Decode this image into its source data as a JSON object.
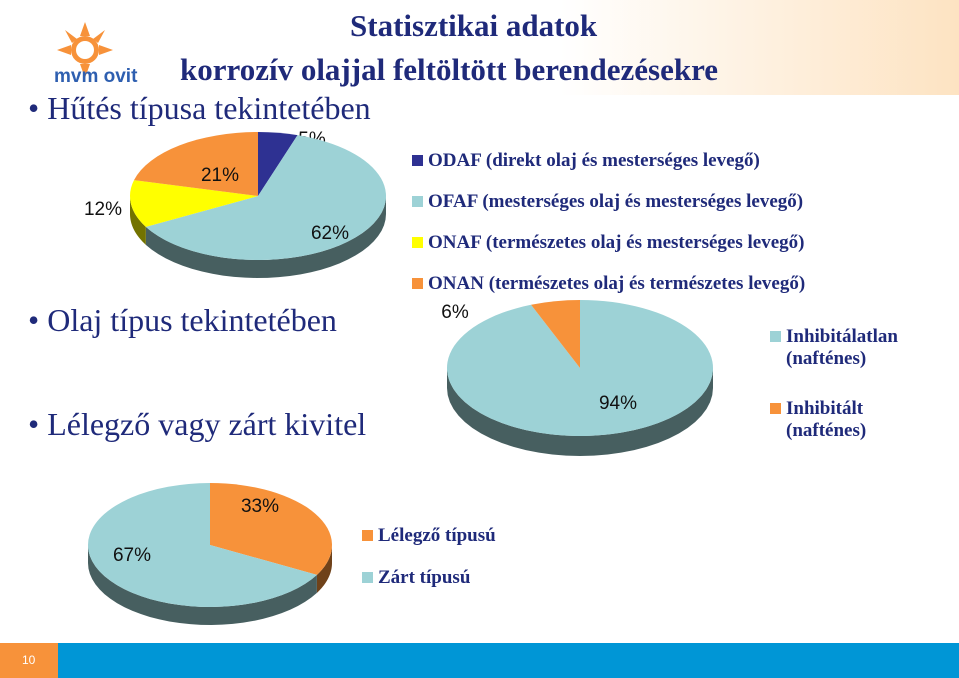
{
  "header": {
    "title": "Statisztikai adatok",
    "subtitle": "korrozív olajjal feltöltött berendezésekre",
    "logo": "mvm ovit"
  },
  "bullets": [
    "Hűtés típusa tekintetében",
    "Olaj típus tekintetében",
    "Lélegző vagy zárt kivitel"
  ],
  "page_number": "10",
  "chart_data": [
    {
      "type": "pie",
      "categories": [
        "ODAF (direkt olaj és mesterséges levegő)",
        "OFAF (mesterséges olaj és mesterséges levegő)",
        "ONAF (természetes olaj és mesterséges levegő)",
        "ONAN (természetes olaj és természetes levegő)"
      ],
      "values": [
        5,
        62,
        12,
        21
      ],
      "value_labels": [
        "5%",
        "62%",
        "12%",
        "21%"
      ],
      "colors": [
        "#2e3192",
        "#9dd2d6",
        "#ffff00",
        "#f7923a"
      ]
    },
    {
      "type": "pie",
      "categories": [
        "Inhibitálatlan (nafténes)",
        "Inhibitált (nafténes)"
      ],
      "values": [
        94,
        6
      ],
      "value_labels": [
        "94%",
        "6%"
      ],
      "colors": [
        "#9dd2d6",
        "#f7923a"
      ]
    },
    {
      "type": "pie",
      "categories": [
        "Lélegző típusú",
        "Zárt típusú"
      ],
      "values": [
        33,
        67
      ],
      "value_labels": [
        "33%",
        "67%"
      ],
      "colors": [
        "#f7923a",
        "#9dd2d6"
      ]
    }
  ]
}
